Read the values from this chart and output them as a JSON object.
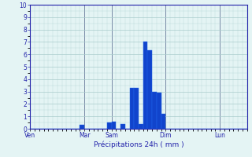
{
  "bar_color": "#1144cc",
  "bar_edge_color": "#2266ee",
  "background_color": "#e4f4f4",
  "grid_color": "#aacccc",
  "axis_color": "#2222aa",
  "xlabel": "Précipitations 24h ( mm )",
  "ylim": [
    0,
    10
  ],
  "yticks": [
    0,
    1,
    2,
    3,
    4,
    5,
    6,
    7,
    8,
    9,
    10
  ],
  "day_labels": [
    "Ven",
    "Mar",
    "Sam",
    "Dim",
    "Lun"
  ],
  "day_tick_positions": [
    0,
    12,
    18,
    30,
    42
  ],
  "n_bars": 48,
  "bar_values": [
    0,
    0,
    0,
    0,
    0,
    0,
    0,
    0,
    0,
    0,
    0,
    0.3,
    0,
    0,
    0,
    0,
    0,
    0.5,
    0.6,
    0,
    0.4,
    0,
    3.3,
    3.3,
    0.4,
    7.0,
    6.3,
    3.0,
    2.9,
    1.2,
    0,
    0,
    0,
    0,
    0,
    0,
    0,
    0,
    0,
    0,
    0,
    0,
    0,
    0,
    0,
    0,
    0,
    0
  ]
}
